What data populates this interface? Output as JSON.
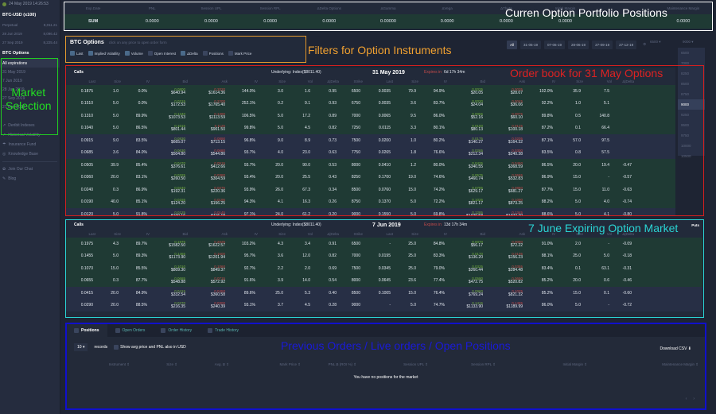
{
  "sidebar": {
    "datetime": "24 May 2019 14:26:53",
    "futures_header": "BTC-USD (x100)",
    "futures": [
      {
        "name": "Perpetual",
        "price": "8,011.21"
      },
      {
        "name": "28 Jun 2019",
        "price": "8,096.42"
      },
      {
        "name": "27 Sep 2019",
        "price": "8,225.44"
      }
    ],
    "options_header": "BTC Options",
    "expirations": [
      "All expirations",
      "31 May 2019",
      "7 Jun 2019",
      "28 Jun 2019",
      "27 Sep 2019",
      "27 Dec 2019"
    ],
    "links": [
      "Deribit Indexes",
      "Historical Volatility",
      "Insurance Fund",
      "Knowledge Base"
    ],
    "links2": [
      "Join Our Chat",
      "Blog"
    ]
  },
  "summary": {
    "headers": [
      "Exp.Date",
      "PNL",
      "Session UPL",
      "Session RPL",
      "ΔDelta Options",
      "ΔGamma",
      "ΔVega",
      "ΔTheta",
      "Initial Margin",
      "",
      "Maintenance Margin"
    ],
    "values": [
      "SUM",
      "0.0000",
      "0.0000",
      "0.0000",
      "0.0000",
      "0.00000",
      "0.0000",
      "0.0000",
      "0.0000",
      "",
      "0.0000"
    ]
  },
  "filters": {
    "title": "BTC Options",
    "hint": "click on any price to open order form",
    "checks": [
      {
        "label": "Last",
        "on": true
      },
      {
        "label": "Implied Volatility",
        "on": true
      },
      {
        "label": "Volume",
        "on": true
      },
      {
        "label": "Open Interest",
        "on": false
      },
      {
        "label": "ΔDelta",
        "on": true
      },
      {
        "label": "Positions",
        "on": false
      },
      {
        "label": "Mark Price",
        "on": false
      }
    ]
  },
  "expiry_tabs": [
    "All",
    "31-05-19",
    "07-06-19",
    "28-06-19",
    "27-09-19",
    "27-12-19"
  ],
  "strike_from": "6500",
  "strike_to": "9000",
  "strike_options": [
    "6500",
    "7000",
    "8250",
    "8500",
    "8750",
    "9000",
    "9250",
    "9500",
    "9750",
    "10000",
    "10500"
  ],
  "annotations": {
    "portfolio": "Curren Option Portfolio Positions",
    "filters": "Filters for Option Instruments",
    "market": "Market\nSelection",
    "book1": "Order book for 31 May Options",
    "book2": "7 June Expiring Option Market",
    "bottom": "Previous Orders / Live orders / Open Positions"
  },
  "columns": [
    "Last",
    "Size",
    "IV",
    "Bid",
    "Ask",
    "IV",
    "Size",
    "Vol",
    "Δ|Delta",
    "Strike",
    "Last",
    "Size",
    "IV",
    "Bid",
    "Ask",
    "IV",
    "Size",
    "Vol",
    "Δ|Delta"
  ],
  "book1": {
    "calls_label": "Calls",
    "underlying": "Underlying: Index($8011.40)",
    "date": "31 May 2019",
    "expires_label": "Expires in",
    "expires_value": "6d 17h 34m",
    "puts_label": "",
    "rows": [
      {
        "cls": "itm",
        "c": [
          "0.1875",
          "1.0",
          "0.0%",
          [
            "0.0800",
            "$640.94"
          ],
          [
            "0.2020",
            "$1614.36"
          ],
          "144.0%",
          "3.0",
          "1.6",
          "0.95"
        ],
        "k": "6500",
        "p": [
          "0.0035",
          "79.9",
          "94.9%",
          [
            "0.0025",
            "$20.05"
          ],
          [
            "0.0035",
            "$28.07"
          ],
          "102.0%",
          "35.9",
          "7.5",
          ""
        ]
      },
      {
        "cls": "itm",
        "c": [
          "0.1510",
          "5.0",
          "0.0%",
          [
            "0.0215",
            "$172.53"
          ],
          [
            "0.2200",
            "$1765.40"
          ],
          "252.1%",
          "0.2",
          "9.1",
          "0.93"
        ],
        "k": "6750",
        "p": [
          "0.0035",
          "3.6",
          "83.7%",
          [
            "0.0030",
            "$24.04"
          ],
          [
            "0.0045",
            "$36.06"
          ],
          "92.2%",
          "1.0",
          "5.1",
          ""
        ]
      },
      {
        "cls": "itm",
        "c": [
          "0.1310",
          "5.0",
          "89.9%",
          [
            "0.1340",
            "$1073.53"
          ],
          [
            "0.1390",
            "$1113.59"
          ],
          "106.5%",
          "5.0",
          "17.2",
          "0.89"
        ],
        "k": "7000",
        "p": [
          "0.0065",
          "9.5",
          "86.0%",
          [
            "0.0065",
            "$52.16"
          ],
          [
            "0.0075",
            "$60.10"
          ],
          "89.8%",
          "0.5",
          "140.8",
          ""
        ]
      },
      {
        "cls": "itm",
        "c": [
          "0.1040",
          "5.0",
          "86.5%",
          [
            "0.1015",
            "$801.44"
          ],
          [
            "0.1125",
            "$901.50"
          ],
          "99.8%",
          "5.0",
          "4.5",
          "0.82"
        ],
        "k": "7250",
        "p": [
          "0.0115",
          "3.3",
          "80.1%",
          [
            "0.0100",
            "$80.13"
          ],
          [
            "0.0125",
            "$100.18"
          ],
          "87.2%",
          "0.1",
          "66.4",
          ""
        ]
      },
      {
        "cls": "otm",
        "c": [
          "0.0915",
          "9.0",
          "83.5%",
          [
            "0.0830",
            "$665.07"
          ],
          [
            "0.0890",
            "$713.15"
          ],
          "96.8%",
          "9.0",
          "8.9",
          "0.73"
        ],
        "k": "7500",
        "p": [
          "0.0200",
          "1.0",
          "80.2%",
          [
            "0.0175",
            "$140.27"
          ],
          [
            "0.0205",
            "$164.32"
          ],
          "87.1%",
          "57.0",
          "97.5",
          ""
        ]
      },
      {
        "cls": "otm",
        "c": [
          "0.0685",
          "3.6",
          "84.0%",
          [
            "0.0630",
            "$504.80"
          ],
          [
            "0.0680",
            "$544.86"
          ],
          "93.7%",
          "4.0",
          "23.0",
          "0.63"
        ],
        "k": "7750",
        "p": [
          "0.0265",
          "1.8",
          "76.6%",
          [
            "0.0265",
            "$212.34"
          ],
          [
            "0.0300",
            "$240.38"
          ],
          "83.5%",
          "0.8",
          "57.5",
          ""
        ]
      },
      {
        "cls": "itm",
        "c": [
          "0.0505",
          "39.9",
          "85.4%",
          [
            "0.0470",
            "$376.61"
          ],
          [
            "0.0515",
            "$412.66"
          ],
          "93.7%",
          "20.0",
          "90.0",
          "0.53"
        ],
        "k": "8000",
        "p": [
          "0.0410",
          "1.2",
          "80.0%",
          [
            "0.0425",
            "$340.55"
          ],
          [
            "0.0460",
            "$368.59"
          ],
          "86.5%",
          "20.0",
          "19.4",
          "-0.47"
        ]
      },
      {
        "cls": "itm",
        "c": [
          "0.0360",
          "20.0",
          "83.1%",
          [
            "0.0325",
            "$260.50"
          ],
          [
            "0.0380",
            "$304.59"
          ],
          "93.4%",
          "20.0",
          "25.5",
          "0.43"
        ],
        "k": "8250",
        "p": [
          "0.1700",
          "19.0",
          "74.6%",
          [
            "0.0575",
            "$460.74"
          ],
          [
            "0.0665",
            "$532.83"
          ],
          "86.9%",
          "15.0",
          "-",
          "-0.57"
        ]
      },
      {
        "cls": "itm",
        "c": [
          "0.0240",
          "0.3",
          "86.9%",
          [
            "0.0240",
            "$192.31"
          ],
          [
            "0.0275",
            "$220.36"
          ],
          "93.9%",
          "26.0",
          "67.3",
          "0.34"
        ],
        "k": "8500",
        "p": [
          "0.0760",
          "15.0",
          "74.2%",
          [
            "0.0785",
            "$629.17"
          ],
          [
            "0.0850",
            "$681.27"
          ],
          "87.7%",
          "15.0",
          "11.0",
          "-0.63"
        ]
      },
      {
        "cls": "itm",
        "c": [
          "0.0190",
          "40.0",
          "85.1%",
          [
            "0.0155",
            "$124.20"
          ],
          [
            "0.0195",
            "$156.25"
          ],
          "94.3%",
          "4.1",
          "16.3",
          "0.26"
        ],
        "k": "8750",
        "p": [
          "0.1370",
          "5.0",
          "72.2%",
          [
            "0.1025",
            "$821.17"
          ],
          [
            "0.1090",
            "$873.25"
          ],
          "88.2%",
          "5.0",
          "4.0",
          "-0.74"
        ]
      },
      {
        "cls": "otm",
        "c": [
          "0.0120",
          "5.0",
          "91.8%",
          [
            "0.0125",
            "$100.16"
          ],
          [
            "0.0145",
            "$116.18"
          ],
          "97.1%",
          "24.0",
          "61.2",
          "0.20"
        ],
        "k": "9000",
        "p": [
          "0.1550",
          "5.0",
          "69.8%",
          [
            "0.1285",
            "$1029.58"
          ],
          [
            "0.1345",
            "$1077.70"
          ],
          "88.6%",
          "5.0",
          "4.1",
          "-0.80"
        ]
      }
    ]
  },
  "book2": {
    "calls_label": "Calls",
    "underlying": "Underlying: Index($8011.40)",
    "date": "7 Jun 2019",
    "expires_label": "Expires in",
    "expires_value": "13d 17h 34m",
    "puts_label": "Puts",
    "rows": [
      {
        "cls": "itm",
        "c": [
          "0.1975",
          "4.3",
          "89.7%",
          [
            "0.1975",
            "$1582.50"
          ],
          [
            "0.2025",
            "$1622.57"
          ],
          "103.2%",
          "4.3",
          "3.4",
          "0.91"
        ],
        "k": "6500",
        "p": [
          "-",
          "25.0",
          "84.8%",
          [
            "0.0070",
            "$56.17"
          ],
          [
            "0.0090",
            "$72.22"
          ],
          "91.0%",
          "2.0",
          "-",
          "-0.09"
        ]
      },
      {
        "cls": "itm",
        "c": [
          "0.1455",
          "5.0",
          "89.3%",
          [
            "0.1465",
            "$1173.90"
          ],
          [
            "0.1500",
            "$1201.94"
          ],
          "95.7%",
          "3.6",
          "12.0",
          "0.82"
        ],
        "k": "7000",
        "p": [
          "0.0195",
          "25.0",
          "83.3%",
          [
            "0.0170",
            "$136.20"
          ],
          [
            "0.0195",
            "$156.23"
          ],
          "88.1%",
          "25.0",
          "5.0",
          "-0.18"
        ]
      },
      {
        "cls": "itm",
        "c": [
          "0.1070",
          "15.0",
          "85.5%",
          [
            "0.1010",
            "$809.30"
          ],
          [
            "0.1060",
            "$849.37"
          ],
          "92.7%",
          "2.2",
          "2.0",
          "0.69"
        ],
        "k": "7500",
        "p": [
          "0.0345",
          "25.0",
          "79.0%",
          [
            "0.0325",
            "$260.44"
          ],
          [
            "0.0355",
            "$284.48"
          ],
          "83.4%",
          "0.1",
          "63.1",
          "-0.31"
        ]
      },
      {
        "cls": "itm",
        "c": [
          "0.0655",
          "0.3",
          "87.7%",
          [
            "0.0685",
            "$548.88"
          ],
          [
            "0.0715",
            "$572.92"
          ],
          "91.6%",
          "3.9",
          "14.0",
          "0.54"
        ],
        "k": "8000",
        "p": [
          "0.0645",
          "23.6",
          "77.4%",
          [
            "0.0590",
            "$472.75"
          ],
          [
            "0.0650",
            "$520.82"
          ],
          "85.2%",
          "20.0",
          "0.6",
          "-0.46"
        ]
      },
      {
        "cls": "otm",
        "c": [
          "0.0415",
          "20.0",
          "84.9%",
          [
            "0.0415",
            "$332.54"
          ],
          [
            "0.0450",
            "$360.58"
          ],
          "89.6%",
          "25.0",
          "5.3",
          "0.40"
        ],
        "k": "8500",
        "p": [
          "0.1005",
          "15.0",
          "76.4%",
          [
            "0.0960",
            "$769.24"
          ],
          [
            "0.1025",
            "$821.32"
          ],
          "85.2%",
          "15.0",
          "0.1",
          "-0.60"
        ]
      },
      {
        "cls": "otm",
        "c": [
          "0.0290",
          "20.0",
          "88.5%",
          [
            "0.0270",
            "$216.35"
          ],
          [
            "0.0300",
            "$240.39"
          ],
          "93.1%",
          "3.7",
          "4.5",
          "0.28"
        ],
        "k": "9000",
        "p": [
          "-",
          "5.0",
          "74.7%",
          [
            "0.1415",
            "$1133.90"
          ],
          [
            "0.1485",
            "$1189.99"
          ],
          "86.0%",
          "5.0",
          "-",
          "-0.72"
        ]
      }
    ]
  },
  "bottom": {
    "tabs": [
      "Positions",
      "Open Orders",
      "Order History",
      "Trade History"
    ],
    "records_value": "10",
    "records_label": "records",
    "usd_label": "Show avg price and PNL also in USD",
    "download": "Download CSV",
    "columns": [
      "Instrument",
      "Size",
      "Avg. Ƀ",
      "Mark Price",
      "PNL Ƀ (ROI %)",
      "Session UPL",
      "Session RPL",
      "Initial Margin",
      "Maintenance Margin"
    ],
    "empty": "You have no positions for the market",
    "prev": "‹",
    "next": "›"
  }
}
